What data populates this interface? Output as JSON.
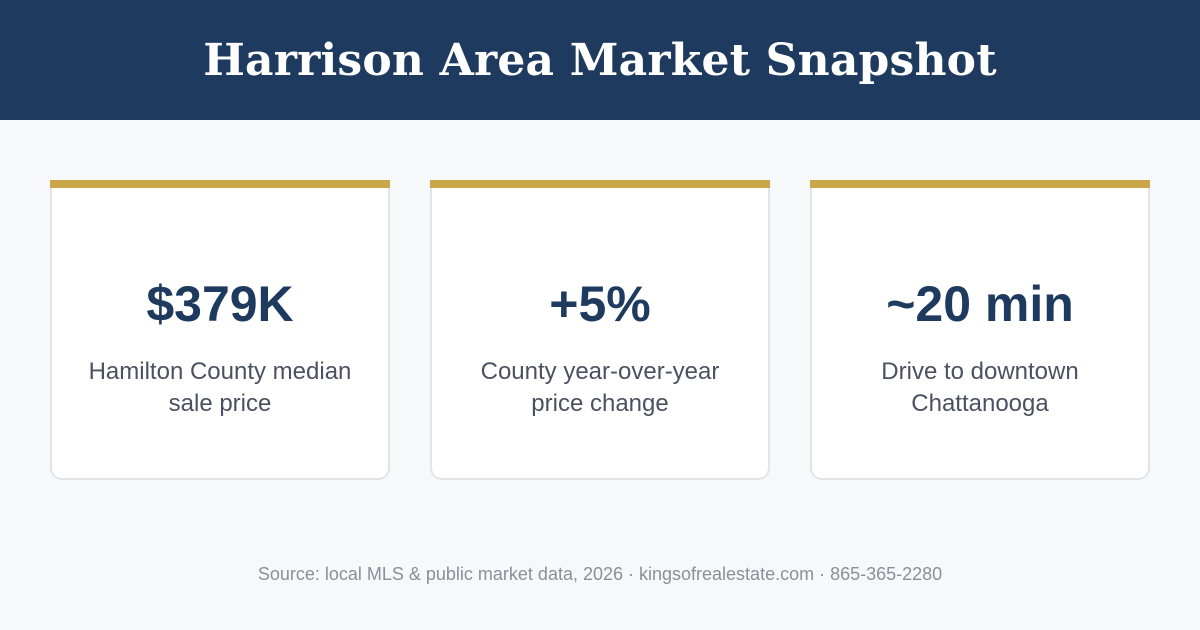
{
  "header": {
    "title": "Harrison Area Market Snapshot"
  },
  "stats": [
    {
      "value": "$379K",
      "label": "Hamilton County median sale price"
    },
    {
      "value": "+5%",
      "label": "County year-over-year price change"
    },
    {
      "value": "~20 min",
      "label": "Drive to downtown Chattanooga"
    }
  ],
  "footer": {
    "text": "Source: local MLS & public market data, 2026 · kingsofrealestate.com · 865-365-2280"
  },
  "colors": {
    "header_bg": "#1f3a5f",
    "accent_bar": "#c9a646",
    "value_text": "#1f3a5f",
    "page_bg": "#f7f8fa"
  }
}
